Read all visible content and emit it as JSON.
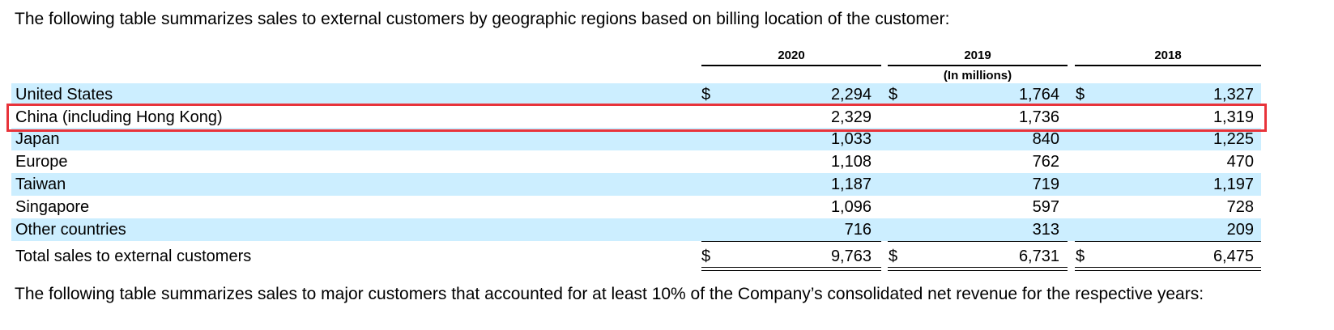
{
  "intro_text": "The following table summarizes sales to external customers by geographic regions based on billing location of the customer:",
  "outro_text": "The following table summarizes sales to major customers that accounted for at least 10% of the Company’s consolidated net revenue for the respective years:",
  "table": {
    "years": [
      "2020",
      "2019",
      "2018"
    ],
    "units_label": "(In millions)",
    "currency_symbol": "$",
    "rows": [
      {
        "label": "United States",
        "values": [
          "2,294",
          "1,764",
          "1,327"
        ],
        "show_currency": true,
        "shaded": true
      },
      {
        "label": "China (including Hong Kong)",
        "values": [
          "2,329",
          "1,736",
          "1,319"
        ],
        "show_currency": false,
        "shaded": false,
        "highlighted": true
      },
      {
        "label": "Japan",
        "values": [
          "1,033",
          "840",
          "1,225"
        ],
        "show_currency": false,
        "shaded": true
      },
      {
        "label": "Europe",
        "values": [
          "1,108",
          "762",
          "470"
        ],
        "show_currency": false,
        "shaded": false
      },
      {
        "label": "Taiwan",
        "values": [
          "1,187",
          "719",
          "1,197"
        ],
        "show_currency": false,
        "shaded": true
      },
      {
        "label": "Singapore",
        "values": [
          "1,096",
          "597",
          "728"
        ],
        "show_currency": false,
        "shaded": false
      },
      {
        "label": "Other countries",
        "values": [
          "716",
          "313",
          "209"
        ],
        "show_currency": false,
        "shaded": true
      }
    ],
    "total": {
      "label": "Total sales to external customers",
      "values": [
        "9,763",
        "6,731",
        "6,475"
      ],
      "show_currency": true
    }
  },
  "colors": {
    "row_shade": "#cceeff",
    "highlight_border": "#e8333a"
  }
}
